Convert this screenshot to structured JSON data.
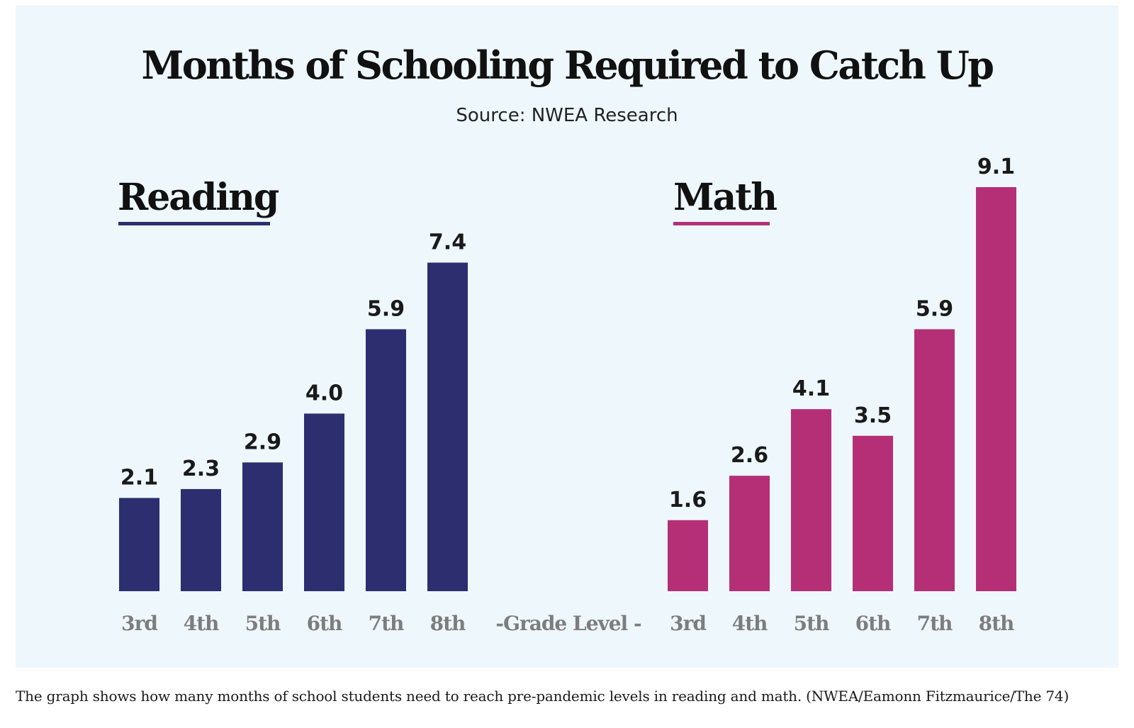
{
  "chart": {
    "title": "Months of Schooling Required to Catch Up",
    "subtitle": "Source: NWEA Research",
    "center_label": "-Grade Level -",
    "caption": "The graph shows how many months of school students need to reach pre-pandemic levels in reading and math. (NWEA/Eamonn Fitzmaurice/The 74)"
  },
  "colors": {
    "panel_background": "#eef7fb",
    "reading": "#2d2e6f",
    "math": "#b52f77"
  },
  "chart_data": [
    {
      "type": "bar",
      "title": "Reading",
      "xlabel": "-Grade Level -",
      "ylabel": "",
      "categories": [
        "3rd",
        "4th",
        "5th",
        "6th",
        "7th",
        "8th"
      ],
      "values": [
        2.1,
        2.3,
        2.9,
        4.0,
        5.9,
        7.4
      ],
      "value_labels": [
        "2.1",
        "2.3",
        "2.9",
        "4.0",
        "5.9",
        "7.4"
      ],
      "ylim": [
        0,
        9.1
      ],
      "grid": false,
      "color": "#2d2e6f"
    },
    {
      "type": "bar",
      "title": "Math",
      "xlabel": "-Grade Level -",
      "ylabel": "",
      "categories": [
        "3rd",
        "4th",
        "5th",
        "6th",
        "7th",
        "8th"
      ],
      "values": [
        1.6,
        2.6,
        4.1,
        3.5,
        5.9,
        9.1
      ],
      "value_labels": [
        "1.6",
        "2.6",
        "4.1",
        "3.5",
        "5.9",
        "9.1"
      ],
      "ylim": [
        0,
        9.1
      ],
      "grid": false,
      "color": "#b52f77"
    }
  ]
}
